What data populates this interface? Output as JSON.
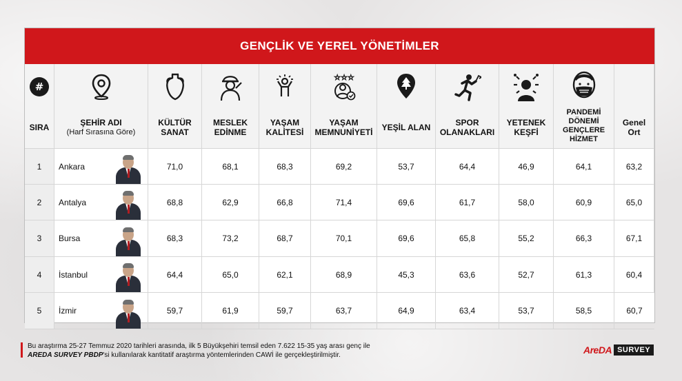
{
  "title": "GENÇLİK VE YEREL YÖNETİMLER",
  "headers": {
    "rank": "SIRA",
    "hash": "#",
    "city": "ŞEHİR ADI",
    "city_sub": "(Harf Sırasına Göre)",
    "cols": [
      {
        "l1": "KÜLTÜR",
        "l2": "SANAT",
        "icon": "amphora-icon"
      },
      {
        "l1": "MESLEK",
        "l2": "EDİNME",
        "icon": "worker-icon"
      },
      {
        "l1": "YAŞAM",
        "l2": "KALİTESİ",
        "icon": "happy-person-icon"
      },
      {
        "l1": "YAŞAM",
        "l2": "MEMNUNİYETİ",
        "icon": "satisfaction-icon"
      },
      {
        "l1": "YEŞİL ALAN",
        "l2": "",
        "icon": "tree-pin-icon"
      },
      {
        "l1": "SPOR",
        "l2": "OLANAKLARI",
        "icon": "runner-icon"
      },
      {
        "l1": "YETENEK",
        "l2": "KEŞFİ",
        "icon": "talent-icon"
      },
      {
        "l1": "PANDEMİ DÖNEMİ GENÇLERE HİZMET",
        "l2": "",
        "icon": "mask-icon"
      },
      {
        "l1": "Genel",
        "l2": "Ort",
        "icon": ""
      }
    ]
  },
  "rows": [
    {
      "rank": "1",
      "city": "Ankara",
      "values": [
        "71,0",
        "68,1",
        "68,3",
        "69,2",
        "53,7",
        "64,4",
        "46,9",
        "64,1",
        "63,2"
      ]
    },
    {
      "rank": "2",
      "city": "Antalya",
      "values": [
        "68,8",
        "62,9",
        "66,8",
        "71,4",
        "69,6",
        "61,7",
        "58,0",
        "60,9",
        "65,0"
      ]
    },
    {
      "rank": "3",
      "city": "Bursa",
      "values": [
        "68,3",
        "73,2",
        "68,7",
        "70,1",
        "69,6",
        "65,8",
        "55,2",
        "66,3",
        "67,1"
      ]
    },
    {
      "rank": "4",
      "city": "İstanbul",
      "values": [
        "64,4",
        "65,0",
        "62,1",
        "68,9",
        "45,3",
        "63,6",
        "52,7",
        "61,3",
        "60,4"
      ]
    },
    {
      "rank": "5",
      "city": "İzmir",
      "values": [
        "59,7",
        "61,9",
        "59,7",
        "63,7",
        "64,9",
        "63,4",
        "53,7",
        "58,5",
        "60,7"
      ]
    }
  ],
  "footer": {
    "line1": "Bu araştırma 25-27 Temmuz 2020 tarihleri arasında, ilk 5 Büyükşehiri temsil eden 7.622 15-35 yaş arası genç ile",
    "brand": "AREDA SURVEY PBDP",
    "line2": "'si kullanılarak kantitatif araştırma yöntemlerinden CAWİ ile gerçekleştirilmiştir."
  },
  "logo": {
    "brand": "AreDA",
    "survey": "SURVEY"
  },
  "colors": {
    "accent": "#d0171b"
  }
}
